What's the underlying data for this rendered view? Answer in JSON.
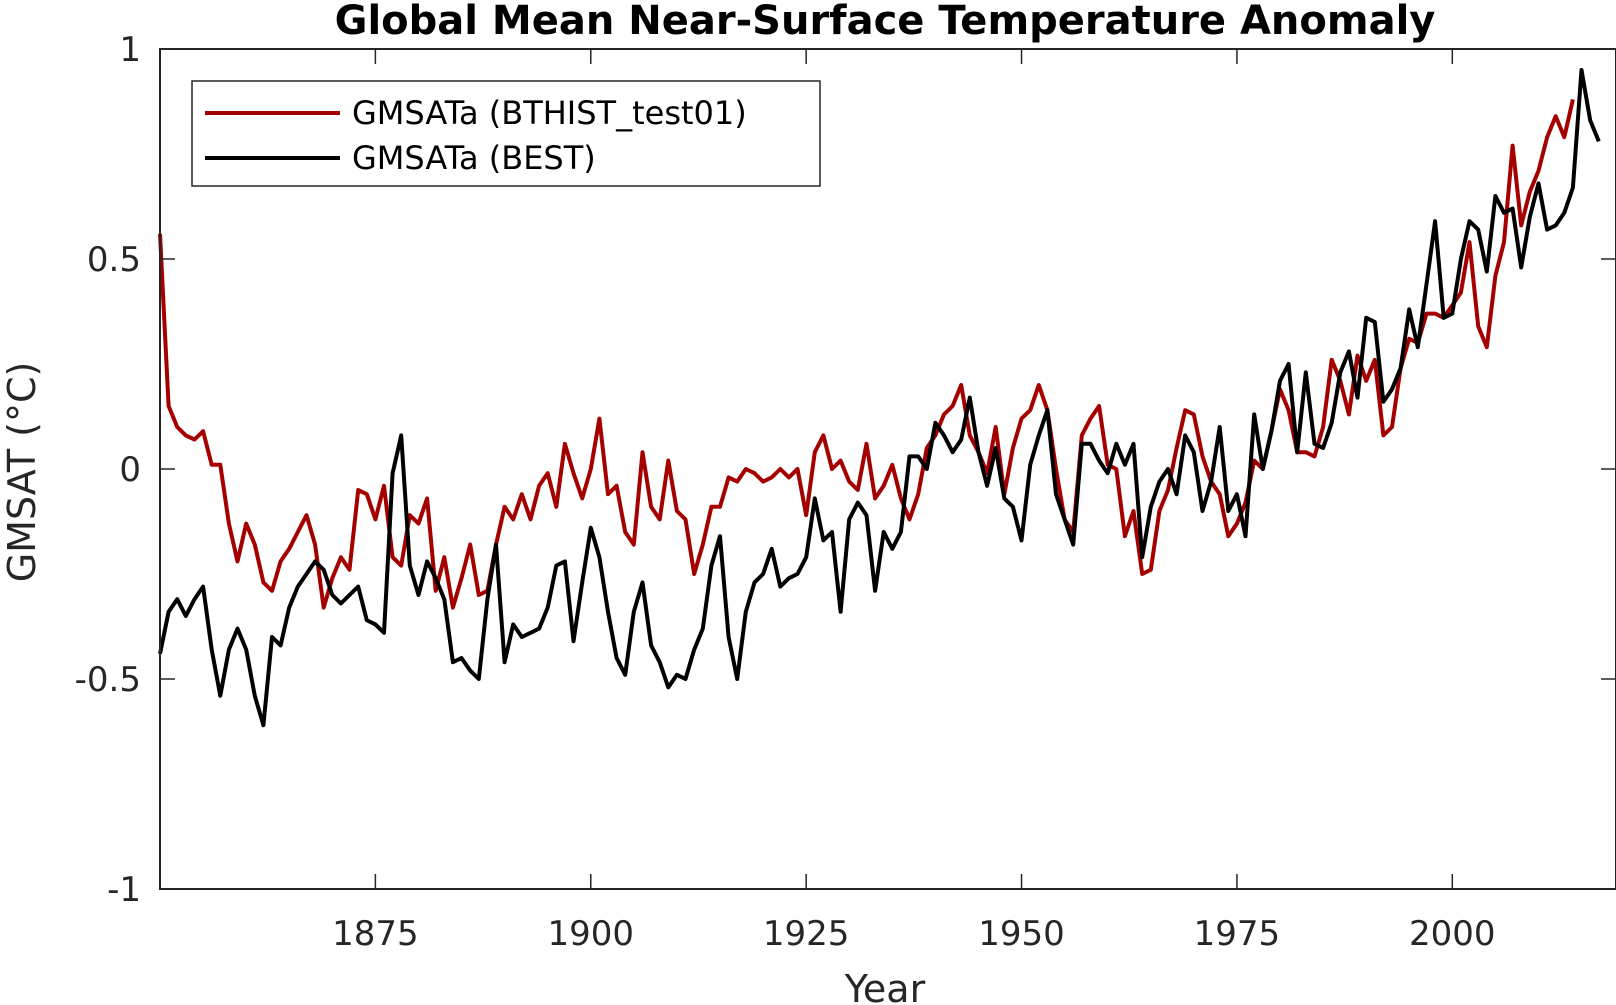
{
  "chart_data": {
    "type": "line",
    "title": "Global Mean Near-Surface Temperature Anomaly",
    "xlabel": "Year",
    "ylabel": "GMSAT (°C)",
    "xlim": [
      1850,
      2019
    ],
    "ylim": [
      -1,
      1
    ],
    "xticks": [
      1875,
      1900,
      1925,
      1950,
      1975,
      2000
    ],
    "xtick_labels": [
      "1875",
      "1900",
      "1925",
      "1950",
      "1975",
      "2000"
    ],
    "yticks": [
      -1,
      -0.5,
      0,
      0.5,
      1
    ],
    "ytick_labels": [
      "-1",
      "-0.5",
      "0",
      "0.5",
      "1"
    ],
    "grid": false,
    "legend_position": "top-left",
    "series": [
      {
        "name": "GMSATa (BTHIST_test01)",
        "color": "#a50000",
        "x_start": 1850,
        "values": [
          0.56,
          0.15,
          0.1,
          0.08,
          0.07,
          0.09,
          0.01,
          0.01,
          -0.13,
          -0.22,
          -0.13,
          -0.18,
          -0.27,
          -0.29,
          -0.22,
          -0.19,
          -0.15,
          -0.11,
          -0.18,
          -0.33,
          -0.26,
          -0.21,
          -0.24,
          -0.05,
          -0.06,
          -0.12,
          -0.04,
          -0.21,
          -0.23,
          -0.11,
          -0.13,
          -0.07,
          -0.29,
          -0.21,
          -0.33,
          -0.26,
          -0.18,
          -0.3,
          -0.29,
          -0.18,
          -0.09,
          -0.12,
          -0.06,
          -0.12,
          -0.04,
          -0.01,
          -0.09,
          0.06,
          -0.01,
          -0.07,
          0.0,
          0.12,
          -0.06,
          -0.04,
          -0.15,
          -0.18,
          0.04,
          -0.09,
          -0.12,
          0.02,
          -0.1,
          -0.12,
          -0.25,
          -0.18,
          -0.09,
          -0.09,
          -0.02,
          -0.03,
          0.0,
          -0.01,
          -0.03,
          -0.02,
          0.0,
          -0.02,
          0.0,
          -0.11,
          0.04,
          0.08,
          0.0,
          0.02,
          -0.03,
          -0.05,
          0.06,
          -0.07,
          -0.04,
          0.01,
          -0.07,
          -0.12,
          -0.06,
          0.05,
          0.08,
          0.13,
          0.15,
          0.2,
          0.08,
          0.04,
          -0.01,
          0.1,
          -0.06,
          0.05,
          0.12,
          0.14,
          0.2,
          0.14,
          0.0,
          -0.12,
          -0.15,
          0.08,
          0.12,
          0.15,
          0.01,
          0.0,
          -0.16,
          -0.1,
          -0.25,
          -0.24,
          -0.1,
          -0.05,
          0.05,
          0.14,
          0.13,
          0.03,
          -0.03,
          -0.06,
          -0.16,
          -0.13,
          -0.08,
          0.02,
          0.0,
          0.09,
          0.19,
          0.14,
          0.04,
          0.04,
          0.03,
          0.1,
          0.26,
          0.21,
          0.13,
          0.27,
          0.21,
          0.26,
          0.08,
          0.1,
          0.24,
          0.31,
          0.3,
          0.37,
          0.37,
          0.36,
          0.39,
          0.42,
          0.54,
          0.34,
          0.29,
          0.46,
          0.54,
          0.77,
          0.58,
          0.66,
          0.71,
          0.79,
          0.84,
          0.79,
          0.88
        ]
      },
      {
        "name": "GMSATa (BEST)",
        "color": "#000000",
        "x_start": 1850,
        "values": [
          -0.44,
          -0.34,
          -0.31,
          -0.35,
          -0.31,
          -0.28,
          -0.43,
          -0.54,
          -0.43,
          -0.38,
          -0.43,
          -0.54,
          -0.61,
          -0.4,
          -0.42,
          -0.33,
          -0.28,
          -0.25,
          -0.22,
          -0.24,
          -0.3,
          -0.32,
          -0.3,
          -0.28,
          -0.36,
          -0.37,
          -0.39,
          -0.01,
          0.08,
          -0.23,
          -0.3,
          -0.22,
          -0.26,
          -0.31,
          -0.46,
          -0.45,
          -0.48,
          -0.5,
          -0.31,
          -0.18,
          -0.46,
          -0.37,
          -0.4,
          -0.39,
          -0.38,
          -0.33,
          -0.23,
          -0.22,
          -0.41,
          -0.27,
          -0.14,
          -0.21,
          -0.34,
          -0.45,
          -0.49,
          -0.34,
          -0.27,
          -0.42,
          -0.46,
          -0.52,
          -0.49,
          -0.5,
          -0.43,
          -0.38,
          -0.23,
          -0.16,
          -0.4,
          -0.5,
          -0.34,
          -0.27,
          -0.25,
          -0.19,
          -0.28,
          -0.26,
          -0.25,
          -0.21,
          -0.07,
          -0.17,
          -0.15,
          -0.34,
          -0.12,
          -0.08,
          -0.11,
          -0.29,
          -0.15,
          -0.19,
          -0.15,
          0.03,
          0.03,
          0.0,
          0.11,
          0.08,
          0.04,
          0.07,
          0.17,
          0.04,
          -0.04,
          0.05,
          -0.07,
          -0.09,
          -0.17,
          0.01,
          0.08,
          0.14,
          -0.06,
          -0.12,
          -0.18,
          0.06,
          0.06,
          0.02,
          -0.01,
          0.06,
          0.01,
          0.06,
          -0.21,
          -0.09,
          -0.03,
          0.0,
          -0.06,
          0.08,
          0.04,
          -0.1,
          -0.03,
          0.1,
          -0.1,
          -0.06,
          -0.16,
          0.13,
          0.0,
          0.09,
          0.21,
          0.25,
          0.04,
          0.23,
          0.06,
          0.05,
          0.11,
          0.23,
          0.28,
          0.17,
          0.36,
          0.35,
          0.16,
          0.19,
          0.24,
          0.38,
          0.29,
          0.44,
          0.59,
          0.36,
          0.37,
          0.5,
          0.59,
          0.57,
          0.47,
          0.65,
          0.61,
          0.62,
          0.48,
          0.6,
          0.68,
          0.57,
          0.58,
          0.61,
          0.67,
          0.95,
          0.83,
          0.78
        ]
      }
    ]
  }
}
